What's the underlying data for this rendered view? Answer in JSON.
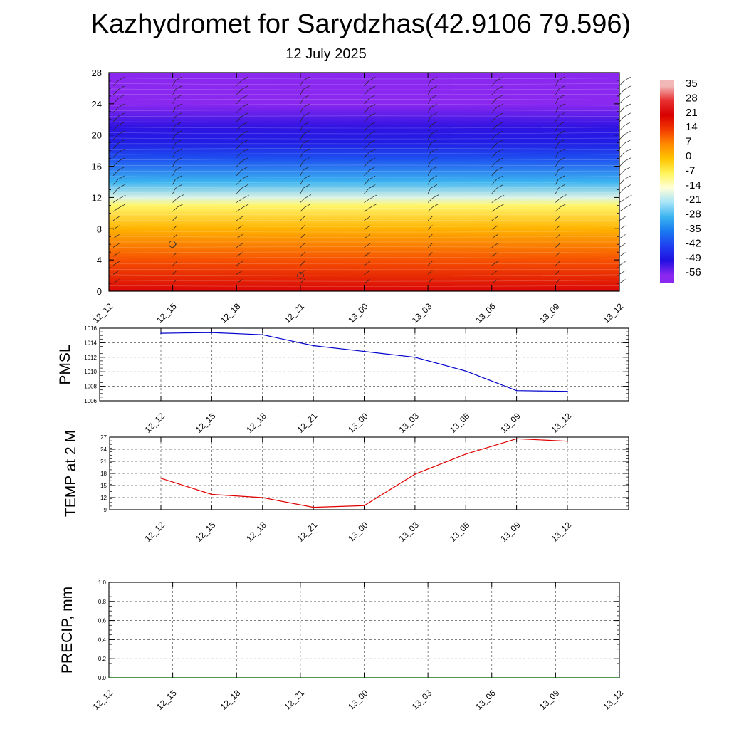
{
  "title": "Kazhydromet for Sarydzhas(42.9106 79.596)",
  "subtitle": "12 July 2025",
  "colorbar": {
    "labels": [
      "35",
      "28",
      "21",
      "14",
      "7",
      "0",
      "-7",
      "-14",
      "-21",
      "-28",
      "-35",
      "-42",
      "-49",
      "-56"
    ],
    "stops": [
      {
        "value": 35,
        "color": "#f2b8b8"
      },
      {
        "value": 28,
        "color": "#e83030"
      },
      {
        "value": 21,
        "color": "#d80000"
      },
      {
        "value": 14,
        "color": "#f23a00"
      },
      {
        "value": 7,
        "color": "#ff8a00"
      },
      {
        "value": 0,
        "color": "#ffc400"
      },
      {
        "value": -7,
        "color": "#fff45a"
      },
      {
        "value": -14,
        "color": "#ffffd8"
      },
      {
        "value": -21,
        "color": "#a8e4f8"
      },
      {
        "value": -28,
        "color": "#3cb4f0"
      },
      {
        "value": -35,
        "color": "#1878f0"
      },
      {
        "value": -42,
        "color": "#2040f0"
      },
      {
        "value": -49,
        "color": "#2010e0"
      },
      {
        "value": -56,
        "color": "#8a28f0"
      }
    ]
  },
  "chart_data": [
    {
      "type": "heatmap",
      "x": [
        "12_12",
        "12_15",
        "12_18",
        "12_21",
        "13_00",
        "13_03",
        "13_06",
        "13_09",
        "13_12"
      ],
      "ylim": [
        0,
        28
      ],
      "yticks": [
        "0",
        "4",
        "8",
        "12",
        "16",
        "20",
        "24",
        "28"
      ],
      "profile": [
        {
          "y": 0,
          "value": 22
        },
        {
          "y": 4,
          "value": 12
        },
        {
          "y": 8,
          "value": 2
        },
        {
          "y": 11,
          "value": -8
        },
        {
          "y": 12,
          "value": -17
        },
        {
          "y": 14,
          "value": -28
        },
        {
          "y": 17,
          "value": -40
        },
        {
          "y": 19,
          "value": -47
        },
        {
          "y": 21,
          "value": -50
        },
        {
          "y": 24,
          "value": -56
        },
        {
          "y": 28,
          "value": -58
        }
      ],
      "overlay": "wind barbs"
    },
    {
      "type": "line",
      "ylabel": "PMSL",
      "categories": [
        "12_12",
        "12_15",
        "12_18",
        "12_21",
        "13_00",
        "13_03",
        "13_06",
        "13_09",
        "13_12"
      ],
      "values": [
        1015.3,
        1015.4,
        1015.1,
        1013.6,
        1012.8,
        1012.0,
        1010.1,
        1007.4,
        1007.3
      ],
      "ylim": [
        1006,
        1016
      ],
      "yticks": [
        "1016",
        "1014",
        "1012",
        "1010",
        "1008",
        "1006"
      ],
      "color": "#0000cc",
      "grid": true
    },
    {
      "type": "line",
      "ylabel": "TEMP at 2 M",
      "categories": [
        "12_12",
        "12_15",
        "12_18",
        "12_21",
        "13_00",
        "13_03",
        "13_06",
        "13_09",
        "13_12"
      ],
      "values": [
        16.8,
        12.8,
        12.0,
        9.6,
        10.0,
        17.8,
        22.8,
        26.6,
        26.0
      ],
      "ylim": [
        9,
        27
      ],
      "yticks": [
        "27",
        "24",
        "21",
        "18",
        "15",
        "12",
        "9"
      ],
      "color": "#e00000",
      "grid": true
    },
    {
      "type": "line",
      "ylabel": "PRECIP, mm",
      "categories": [
        "12_12",
        "12_15",
        "12_18",
        "12_21",
        "13_00",
        "13_03",
        "13_06",
        "13_09",
        "13_12"
      ],
      "values": [
        0,
        0,
        0,
        0,
        0,
        0,
        0,
        0,
        0
      ],
      "ylim": [
        0,
        1
      ],
      "yticks": [
        "1.0",
        "0.8",
        "0.6",
        "0.4",
        "0.2",
        "0.0"
      ],
      "color": "#006600",
      "grid": true
    }
  ]
}
